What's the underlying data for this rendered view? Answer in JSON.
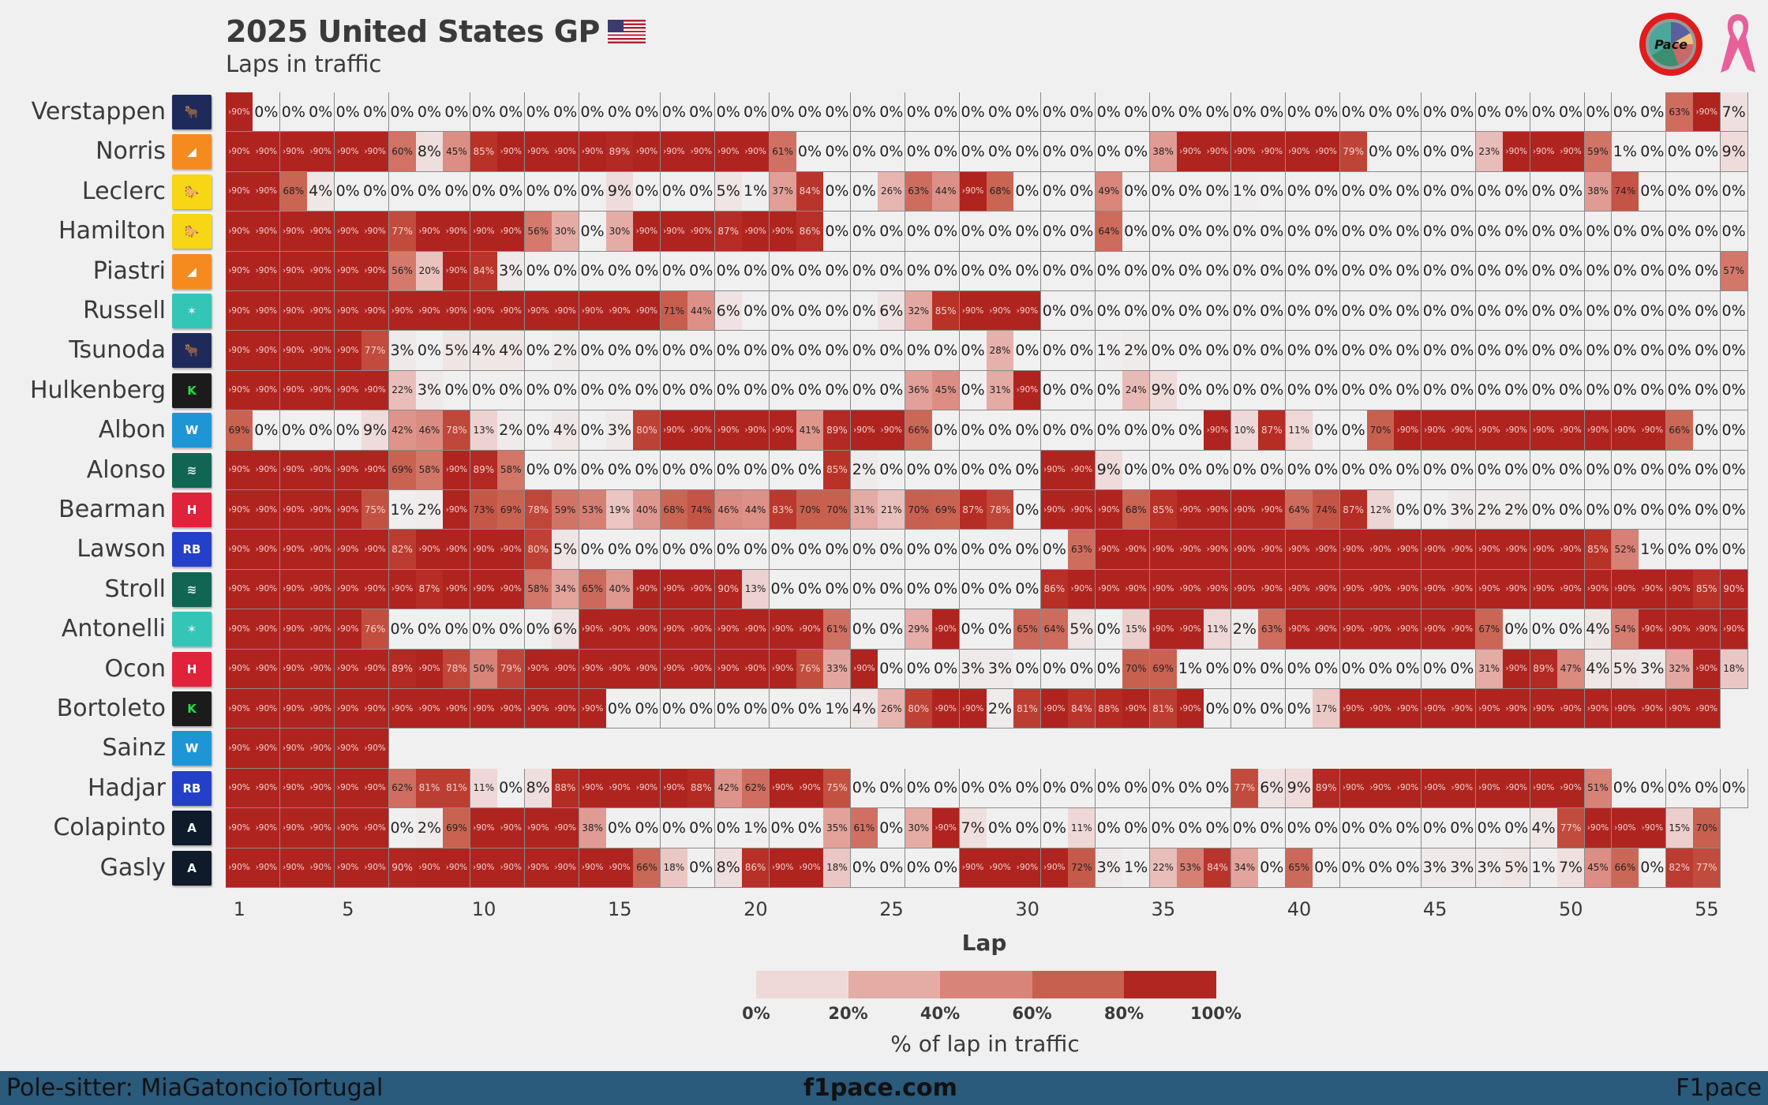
{
  "header": {
    "title": "2025 United States GP",
    "subtitle": "Laps in traffic",
    "flag_icon": "us-flag-icon",
    "logos": [
      "pace-logo",
      "pink-ribbon-icon"
    ]
  },
  "footer": {
    "left": "Pole-sitter: MiaGatoncioTortugal",
    "center": "f1pace.com",
    "right": "F1pace"
  },
  "colors": {
    "background": "#f0f0f0",
    "scale": [
      "#f0f0f0",
      "#eed9d8",
      "#e5aca6",
      "#d98479",
      "#c8604f",
      "#b83228",
      "#a50f15"
    ],
    "footer_bar": "#2a5a7c"
  },
  "chart_data": {
    "type": "heatmap",
    "title": "2025 United States GP",
    "subtitle": "Laps in traffic",
    "xlabel": "Lap",
    "x_ticks": [
      1,
      5,
      10,
      15,
      20,
      25,
      30,
      35,
      40,
      45,
      50,
      55
    ],
    "laps": 56,
    "value_note": "Percentage of lap in traffic; 91 represents '>90%'",
    "colorbar": {
      "label": "% of lap in traffic",
      "ticks": [
        "0%",
        "20%",
        "40%",
        "60%",
        "80%",
        "100%"
      ],
      "range": [
        0,
        100
      ]
    },
    "drivers": [
      {
        "name": "Verstappen",
        "team": "Red Bull",
        "logo": "red-bull-logo",
        "values": [
          91,
          0,
          0,
          0,
          0,
          0,
          0,
          0,
          0,
          0,
          0,
          0,
          0,
          0,
          0,
          0,
          0,
          0,
          0,
          0,
          0,
          0,
          0,
          0,
          0,
          0,
          0,
          0,
          0,
          0,
          0,
          0,
          0,
          0,
          0,
          0,
          0,
          0,
          0,
          0,
          0,
          0,
          0,
          0,
          0,
          0,
          0,
          0,
          0,
          0,
          0,
          0,
          0,
          63,
          91,
          7
        ]
      },
      {
        "name": "Norris",
        "team": "McLaren",
        "logo": "mclaren-logo",
        "values": [
          91,
          91,
          91,
          91,
          91,
          91,
          60,
          8,
          45,
          85,
          91,
          91,
          91,
          91,
          89,
          91,
          91,
          91,
          91,
          91,
          61,
          0,
          0,
          0,
          0,
          0,
          0,
          0,
          0,
          0,
          0,
          0,
          0,
          0,
          38,
          91,
          91,
          91,
          91,
          91,
          91,
          79,
          0,
          0,
          0,
          0,
          23,
          91,
          91,
          91,
          59,
          1,
          0,
          0,
          0,
          9
        ]
      },
      {
        "name": "Leclerc",
        "team": "Ferrari",
        "logo": "ferrari-logo",
        "values": [
          91,
          91,
          68,
          4,
          0,
          0,
          0,
          0,
          0,
          0,
          0,
          0,
          0,
          0,
          9,
          0,
          0,
          0,
          5,
          1,
          37,
          84,
          0,
          0,
          26,
          63,
          44,
          91,
          68,
          0,
          0,
          0,
          49,
          0,
          0,
          0,
          0,
          1,
          0,
          0,
          0,
          0,
          0,
          0,
          0,
          0,
          0,
          0,
          0,
          0,
          38,
          74,
          0,
          0,
          0,
          0
        ]
      },
      {
        "name": "Hamilton",
        "team": "Ferrari",
        "logo": "ferrari-logo",
        "values": [
          91,
          91,
          91,
          91,
          91,
          91,
          77,
          91,
          91,
          91,
          91,
          56,
          30,
          0,
          30,
          91,
          91,
          91,
          87,
          91,
          91,
          86,
          0,
          0,
          0,
          0,
          0,
          0,
          0,
          0,
          0,
          0,
          64,
          0,
          0,
          0,
          0,
          0,
          0,
          0,
          0,
          0,
          0,
          0,
          0,
          0,
          0,
          0,
          0,
          0,
          0,
          0,
          0,
          0,
          0,
          0
        ]
      },
      {
        "name": "Piastri",
        "team": "McLaren",
        "logo": "mclaren-logo",
        "values": [
          91,
          91,
          91,
          91,
          91,
          91,
          56,
          20,
          91,
          84,
          3,
          0,
          0,
          0,
          0,
          0,
          0,
          0,
          0,
          0,
          0,
          0,
          0,
          0,
          0,
          0,
          0,
          0,
          0,
          0,
          0,
          0,
          0,
          0,
          0,
          0,
          0,
          0,
          0,
          0,
          0,
          0,
          0,
          0,
          0,
          0,
          0,
          0,
          0,
          0,
          0,
          0,
          0,
          0,
          0,
          57
        ]
      },
      {
        "name": "Russell",
        "team": "Mercedes",
        "logo": "mercedes-logo",
        "values": [
          91,
          91,
          91,
          91,
          91,
          91,
          91,
          91,
          91,
          91,
          91,
          91,
          91,
          91,
          91,
          91,
          71,
          44,
          6,
          0,
          0,
          0,
          0,
          0,
          6,
          32,
          85,
          91,
          91,
          91,
          0,
          0,
          0,
          0,
          0,
          0,
          0,
          0,
          0,
          0,
          0,
          0,
          0,
          0,
          0,
          0,
          0,
          0,
          0,
          0,
          0,
          0,
          0,
          0,
          0,
          0
        ]
      },
      {
        "name": "Tsunoda",
        "team": "Red Bull",
        "logo": "red-bull-logo",
        "values": [
          91,
          91,
          91,
          91,
          91,
          77,
          3,
          0,
          5,
          4,
          4,
          0,
          2,
          0,
          0,
          0,
          0,
          0,
          0,
          0,
          0,
          0,
          0,
          0,
          0,
          0,
          0,
          0,
          28,
          0,
          0,
          0,
          1,
          2,
          0,
          0,
          0,
          0,
          0,
          0,
          0,
          0,
          0,
          0,
          0,
          0,
          0,
          0,
          0,
          0,
          0,
          0,
          0,
          0,
          0,
          0
        ]
      },
      {
        "name": "Hulkenberg",
        "team": "Sauber",
        "logo": "sauber-logo",
        "values": [
          91,
          91,
          91,
          91,
          91,
          91,
          22,
          3,
          0,
          0,
          0,
          0,
          0,
          0,
          0,
          0,
          0,
          0,
          0,
          0,
          0,
          0,
          0,
          0,
          0,
          36,
          45,
          0,
          31,
          91,
          0,
          0,
          0,
          24,
          9,
          0,
          0,
          0,
          0,
          0,
          0,
          0,
          0,
          0,
          0,
          0,
          0,
          0,
          0,
          0,
          0,
          0,
          0,
          0,
          0,
          0
        ]
      },
      {
        "name": "Albon",
        "team": "Williams",
        "logo": "williams-logo",
        "values": [
          69,
          0,
          0,
          0,
          0,
          9,
          42,
          46,
          78,
          13,
          2,
          0,
          4,
          0,
          3,
          80,
          91,
          91,
          91,
          91,
          91,
          41,
          89,
          91,
          91,
          66,
          0,
          0,
          0,
          0,
          0,
          0,
          0,
          0,
          0,
          0,
          91,
          10,
          87,
          11,
          0,
          0,
          70,
          91,
          91,
          91,
          91,
          91,
          91,
          91,
          91,
          91,
          91,
          66,
          0,
          0
        ]
      },
      {
        "name": "Alonso",
        "team": "Aston Martin",
        "logo": "aston-martin-logo",
        "values": [
          91,
          91,
          91,
          91,
          91,
          91,
          69,
          58,
          91,
          89,
          58,
          0,
          0,
          0,
          0,
          0,
          0,
          0,
          0,
          0,
          0,
          0,
          85,
          2,
          0,
          0,
          0,
          0,
          0,
          0,
          91,
          91,
          9,
          0,
          0,
          0,
          0,
          0,
          0,
          0,
          0,
          0,
          0,
          0,
          0,
          0,
          0,
          0,
          0,
          0,
          0,
          0,
          0,
          0,
          0,
          0
        ]
      },
      {
        "name": "Bearman",
        "team": "Haas",
        "logo": "haas-logo",
        "values": [
          91,
          91,
          91,
          91,
          91,
          75,
          1,
          2,
          91,
          73,
          69,
          78,
          59,
          53,
          19,
          40,
          68,
          74,
          46,
          44,
          83,
          70,
          70,
          31,
          21,
          70,
          69,
          87,
          78,
          0,
          91,
          91,
          91,
          68,
          85,
          91,
          91,
          91,
          91,
          64,
          74,
          87,
          12,
          0,
          0,
          3,
          2,
          2,
          0,
          0,
          0,
          0,
          0,
          0,
          0,
          0
        ]
      },
      {
        "name": "Lawson",
        "team": "Racing Bulls",
        "logo": "racing-bulls-logo",
        "values": [
          91,
          91,
          91,
          91,
          91,
          91,
          82,
          91,
          91,
          91,
          91,
          80,
          5,
          0,
          0,
          0,
          0,
          0,
          0,
          0,
          0,
          0,
          0,
          0,
          0,
          0,
          0,
          0,
          0,
          0,
          0,
          63,
          91,
          91,
          91,
          91,
          91,
          91,
          91,
          91,
          91,
          91,
          91,
          91,
          91,
          91,
          91,
          91,
          91,
          91,
          85,
          52,
          1,
          0,
          0,
          0
        ]
      },
      {
        "name": "Stroll",
        "team": "Aston Martin",
        "logo": "aston-martin-logo",
        "values": [
          91,
          91,
          91,
          91,
          91,
          91,
          91,
          87,
          91,
          91,
          91,
          58,
          34,
          65,
          40,
          91,
          91,
          91,
          90,
          13,
          0,
          0,
          0,
          0,
          0,
          0,
          0,
          0,
          0,
          0,
          86,
          91,
          91,
          91,
          91,
          91,
          91,
          91,
          91,
          91,
          91,
          91,
          91,
          91,
          91,
          91,
          91,
          91,
          91,
          91,
          91,
          91,
          91,
          91,
          85,
          90
        ]
      },
      {
        "name": "Antonelli",
        "team": "Mercedes",
        "logo": "mercedes-logo",
        "values": [
          91,
          91,
          91,
          91,
          91,
          76,
          0,
          0,
          0,
          0,
          0,
          0,
          6,
          91,
          91,
          91,
          91,
          91,
          91,
          91,
          91,
          91,
          61,
          0,
          0,
          29,
          91,
          0,
          0,
          65,
          64,
          5,
          0,
          15,
          91,
          91,
          11,
          2,
          63,
          91,
          91,
          91,
          91,
          91,
          91,
          91,
          67,
          0,
          0,
          0,
          4,
          54,
          91,
          91,
          91,
          91
        ]
      },
      {
        "name": "Ocon",
        "team": "Haas",
        "logo": "haas-logo",
        "values": [
          91,
          91,
          91,
          91,
          91,
          91,
          89,
          91,
          78,
          50,
          79,
          91,
          91,
          91,
          91,
          91,
          91,
          91,
          91,
          91,
          91,
          76,
          33,
          91,
          0,
          0,
          0,
          3,
          3,
          0,
          0,
          0,
          0,
          70,
          69,
          1,
          0,
          0,
          0,
          0,
          0,
          0,
          0,
          0,
          0,
          0,
          31,
          91,
          89,
          47,
          4,
          5,
          3,
          32,
          91,
          18
        ]
      },
      {
        "name": "Bortoleto",
        "team": "Sauber",
        "logo": "sauber-logo",
        "values": [
          91,
          91,
          91,
          91,
          91,
          91,
          91,
          91,
          91,
          91,
          91,
          91,
          91,
          91,
          0,
          0,
          0,
          0,
          0,
          0,
          0,
          0,
          1,
          4,
          26,
          80,
          91,
          91,
          2,
          81,
          91,
          84,
          88,
          91,
          81,
          91,
          0,
          0,
          0,
          0,
          17,
          91,
          91,
          91,
          91,
          91,
          91,
          91,
          91,
          91,
          91,
          91,
          91,
          91,
          91
        ]
      },
      {
        "name": "Sainz",
        "team": "Williams",
        "logo": "williams-logo",
        "values": [
          91,
          91,
          91,
          91,
          91,
          91
        ]
      },
      {
        "name": "Hadjar",
        "team": "Racing Bulls",
        "logo": "racing-bulls-logo",
        "values": [
          91,
          91,
          91,
          91,
          91,
          91,
          62,
          81,
          81,
          11,
          0,
          8,
          88,
          91,
          91,
          91,
          91,
          88,
          42,
          62,
          91,
          91,
          75,
          0,
          0,
          0,
          0,
          0,
          0,
          0,
          0,
          0,
          0,
          0,
          0,
          0,
          0,
          77,
          6,
          9,
          89,
          91,
          91,
          91,
          91,
          91,
          91,
          91,
          91,
          91,
          51,
          0,
          0,
          0,
          0,
          0
        ]
      },
      {
        "name": "Colapinto",
        "team": "Alpine",
        "logo": "alpine-logo",
        "values": [
          91,
          91,
          91,
          91,
          91,
          91,
          0,
          2,
          69,
          91,
          91,
          91,
          91,
          38,
          0,
          0,
          0,
          0,
          0,
          1,
          0,
          0,
          35,
          61,
          0,
          30,
          91,
          7,
          0,
          0,
          0,
          11,
          0,
          0,
          0,
          0,
          0,
          0,
          0,
          0,
          0,
          0,
          0,
          0,
          0,
          0,
          0,
          0,
          4,
          77,
          91,
          91,
          91,
          15,
          70
        ]
      },
      {
        "name": "Gasly",
        "team": "Alpine",
        "logo": "alpine-logo",
        "values": [
          91,
          91,
          91,
          91,
          91,
          91,
          90,
          91,
          91,
          91,
          91,
          91,
          91,
          91,
          91,
          66,
          18,
          0,
          8,
          86,
          91,
          91,
          18,
          0,
          0,
          0,
          0,
          91,
          91,
          91,
          91,
          72,
          3,
          1,
          22,
          53,
          84,
          34,
          0,
          65,
          0,
          0,
          0,
          0,
          3,
          3,
          3,
          5,
          1,
          7,
          45,
          66,
          0,
          82,
          77
        ]
      }
    ]
  }
}
